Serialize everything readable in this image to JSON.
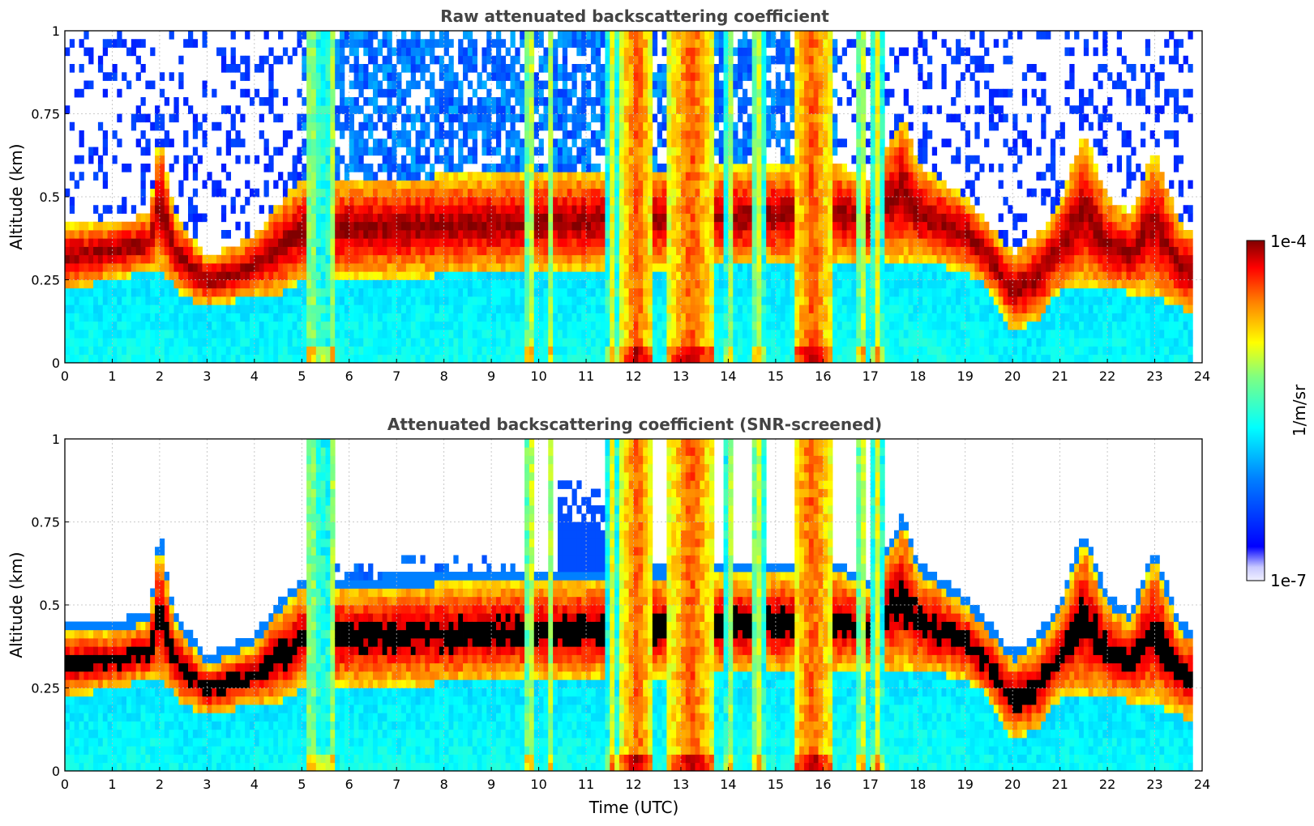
{
  "chart_data": [
    {
      "type": "heatmap",
      "title": "Raw attenuated backscattering coefficient",
      "xlabel": "",
      "ylabel": "Altitude (km)",
      "xlim": [
        0,
        24
      ],
      "ylim": [
        0,
        1
      ],
      "x_ticks": [
        "0",
        "1",
        "2",
        "3",
        "4",
        "5",
        "6",
        "7",
        "8",
        "9",
        "10",
        "11",
        "12",
        "13",
        "14",
        "15",
        "16",
        "17",
        "18",
        "19",
        "20",
        "21",
        "22",
        "23",
        "24"
      ],
      "y_ticks": [
        "0",
        "0.25",
        "0.5",
        "0.75",
        "1"
      ],
      "grid": true,
      "layer_top_km": [
        [
          0,
          0.42
        ],
        [
          1,
          0.42
        ],
        [
          1.8,
          0.45
        ],
        [
          2,
          0.7
        ],
        [
          2.3,
          0.45
        ],
        [
          3,
          0.32
        ],
        [
          3.5,
          0.35
        ],
        [
          4,
          0.38
        ],
        [
          4.5,
          0.48
        ],
        [
          5,
          0.55
        ],
        [
          16.3,
          0.6
        ],
        [
          17,
          0.55
        ],
        [
          17.7,
          0.75
        ],
        [
          18,
          0.6
        ],
        [
          19,
          0.5
        ],
        [
          19.5,
          0.42
        ],
        [
          20,
          0.33
        ],
        [
          20.5,
          0.38
        ],
        [
          21,
          0.48
        ],
        [
          21.5,
          0.7
        ],
        [
          22,
          0.5
        ],
        [
          22.5,
          0.45
        ],
        [
          23,
          0.65
        ],
        [
          23.5,
          0.42
        ],
        [
          23.8,
          0.4
        ]
      ],
      "layer_base_km": [
        [
          0,
          0.22
        ],
        [
          1,
          0.25
        ],
        [
          2,
          0.28
        ],
        [
          2.5,
          0.2
        ],
        [
          3,
          0.17
        ],
        [
          4,
          0.2
        ],
        [
          4.5,
          0.2
        ],
        [
          5,
          0.25
        ],
        [
          16.3,
          0.3
        ],
        [
          17,
          0.3
        ],
        [
          18,
          0.3
        ],
        [
          19,
          0.28
        ],
        [
          19.5,
          0.22
        ],
        [
          20,
          0.1
        ],
        [
          20.5,
          0.12
        ],
        [
          21,
          0.22
        ],
        [
          22,
          0.22
        ],
        [
          23,
          0.2
        ],
        [
          23.8,
          0.15
        ]
      ],
      "precip_columns_h": [
        [
          5.1,
          5.3
        ],
        [
          5.35,
          5.45
        ],
        [
          5.55,
          5.7
        ],
        [
          9.7,
          9.95
        ],
        [
          10.2,
          10.35
        ],
        [
          11.45,
          11.65
        ],
        [
          11.75,
          12.4
        ],
        [
          12.75,
          13.7
        ],
        [
          13.95,
          14.1
        ],
        [
          14.5,
          14.75
        ],
        [
          15.35,
          16.2
        ],
        [
          16.7,
          16.95
        ],
        [
          17.05,
          17.25
        ]
      ],
      "colorbar": {
        "label": "1/m/sr",
        "min_label": "1e-7",
        "max_label": "1e-4"
      }
    },
    {
      "type": "heatmap",
      "title": "Attenuated backscattering coefficient (SNR-screened)",
      "xlabel": "Time (UTC)",
      "ylabel": "Altitude (km)",
      "xlim": [
        0,
        24
      ],
      "ylim": [
        0,
        1
      ],
      "x_ticks": [
        "0",
        "1",
        "2",
        "3",
        "4",
        "5",
        "6",
        "7",
        "8",
        "9",
        "10",
        "11",
        "12",
        "13",
        "14",
        "15",
        "16",
        "17",
        "18",
        "19",
        "20",
        "21",
        "22",
        "23",
        "24"
      ],
      "y_ticks": [
        "0",
        "0.25",
        "0.5",
        "0.75",
        "1"
      ],
      "grid": true,
      "screened": true
    }
  ],
  "colors": {
    "jet": [
      "#00008f",
      "#0000ff",
      "#0080ff",
      "#00ffff",
      "#80ff80",
      "#ffff00",
      "#ff8000",
      "#ff0000",
      "#800000"
    ],
    "saturated": "#000000",
    "title": "#444444"
  }
}
